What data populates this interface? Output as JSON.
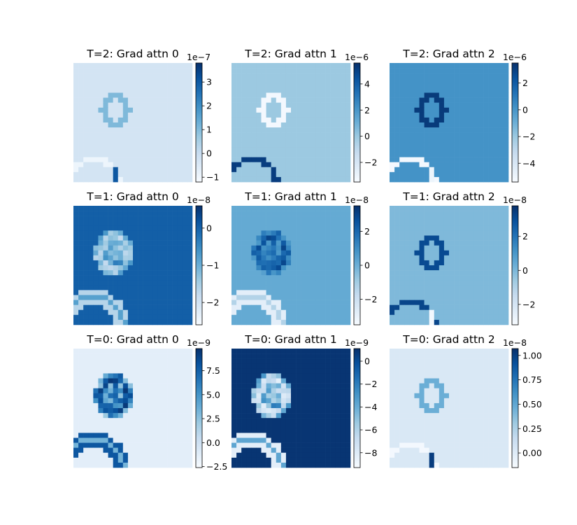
{
  "chart_data": [
    {
      "type": "heatmap",
      "title": "T=2: Grad attn 0",
      "colormap": "Blues",
      "background_level": 0.18,
      "colorbar": {
        "exponent": "1e−7",
        "range": [
          -1.2,
          3.8
        ],
        "ticks": [
          -1,
          0,
          1,
          2,
          3
        ],
        "tick_labels": [
          "−1",
          "0",
          "1",
          "2",
          "3"
        ]
      },
      "features": [
        {
          "kind": "small-ring",
          "level": 0.45
        },
        {
          "kind": "arc",
          "level": 0.05
        },
        {
          "kind": "bar",
          "level": 0.85
        }
      ]
    },
    {
      "type": "heatmap",
      "title": "T=2: Grad attn 1",
      "colormap": "Blues",
      "background_level": 0.38,
      "colorbar": {
        "exponent": "1e−6",
        "range": [
          -3.5,
          5.6
        ],
        "ticks": [
          -2,
          0,
          2,
          4
        ],
        "tick_labels": [
          "−2",
          "0",
          "2",
          "4"
        ]
      },
      "features": [
        {
          "kind": "small-ring",
          "level": 0.02
        },
        {
          "kind": "arc",
          "level": 0.95
        },
        {
          "kind": "bar",
          "level": 0.95
        }
      ]
    },
    {
      "type": "heatmap",
      "title": "T=2: Grad attn 2",
      "colormap": "Blues",
      "background_level": 0.62,
      "colorbar": {
        "exponent": "1e−6",
        "range": [
          -5.4,
          3.5
        ],
        "ticks": [
          -4,
          -2,
          0,
          2
        ],
        "tick_labels": [
          "−4",
          "−2",
          "0",
          "2"
        ]
      },
      "features": [
        {
          "kind": "small-ring",
          "level": 0.96
        },
        {
          "kind": "arc",
          "level": 0.02
        },
        {
          "kind": "bar",
          "level": 0.05
        }
      ]
    },
    {
      "type": "heatmap",
      "title": "T=1: Grad attn 0",
      "colormap": "Blues",
      "background_level": 0.82,
      "colorbar": {
        "exponent": "1e−8",
        "range": [
          -2.6,
          0.6
        ],
        "ticks": [
          -2,
          -1,
          0
        ],
        "tick_labels": [
          "−2",
          "−1",
          "0"
        ]
      },
      "features": [
        {
          "kind": "textured-ring",
          "level": 0.35
        },
        {
          "kind": "double-arc",
          "level": 0.3
        }
      ]
    },
    {
      "type": "heatmap",
      "title": "T=1: Grad attn 1",
      "colormap": "Blues",
      "background_level": 0.52,
      "colorbar": {
        "exponent": "1e−8",
        "range": [
          -3.5,
          3.5
        ],
        "ticks": [
          -2,
          0,
          2
        ],
        "tick_labels": [
          "−2",
          "0",
          "2"
        ]
      },
      "features": [
        {
          "kind": "textured-ring",
          "level": 0.85
        },
        {
          "kind": "double-arc",
          "level": 0.1
        }
      ]
    },
    {
      "type": "heatmap",
      "title": "T=1: Grad attn 2",
      "colormap": "Blues",
      "background_level": 0.45,
      "colorbar": {
        "exponent": "1e−8",
        "range": [
          -3.2,
          3.8
        ],
        "ticks": [
          -2,
          0,
          2
        ],
        "tick_labels": [
          "−2",
          "0",
          "2"
        ]
      },
      "features": [
        {
          "kind": "small-ring",
          "level": 0.9
        },
        {
          "kind": "arc",
          "level": 0.92
        },
        {
          "kind": "bar",
          "level": 0.02
        }
      ]
    },
    {
      "type": "heatmap",
      "title": "T=0: Grad attn 0",
      "colormap": "Blues",
      "background_level": 0.1,
      "colorbar": {
        "exponent": "1e−9",
        "range": [
          -2.6,
          9.8
        ],
        "ticks": [
          -2.5,
          0.0,
          2.5,
          5.0,
          7.5
        ],
        "tick_labels": [
          "−2.5",
          "0.0",
          "2.5",
          "5.0",
          "7.5"
        ]
      },
      "features": [
        {
          "kind": "textured-ring",
          "level": 0.9
        },
        {
          "kind": "double-arc",
          "level": 0.85
        }
      ]
    },
    {
      "type": "heatmap",
      "title": "T=0: Grad attn 1",
      "colormap": "Blues",
      "background_level": 0.98,
      "colorbar": {
        "exponent": "1e−9",
        "range": [
          -9.3,
          1.1
        ],
        "ticks": [
          -8,
          -6,
          -4,
          -2,
          0
        ],
        "tick_labels": [
          "−8",
          "−6",
          "−4",
          "−2",
          "0"
        ]
      },
      "features": [
        {
          "kind": "textured-ring",
          "level": 0.2
        },
        {
          "kind": "double-arc",
          "level": 0.1
        }
      ]
    },
    {
      "type": "heatmap",
      "title": "T=0: Grad attn 2",
      "colormap": "Blues",
      "background_level": 0.15,
      "colorbar": {
        "exponent": "1e−8",
        "range": [
          -0.15,
          1.07
        ],
        "ticks": [
          0.0,
          0.25,
          0.5,
          0.75,
          1.0
        ],
        "tick_labels": [
          "0.00",
          "0.25",
          "0.50",
          "0.75",
          "1.00"
        ]
      },
      "features": [
        {
          "kind": "small-ring",
          "level": 0.5
        },
        {
          "kind": "arc",
          "level": 0.02
        },
        {
          "kind": "bar",
          "level": 0.95
        }
      ]
    }
  ]
}
